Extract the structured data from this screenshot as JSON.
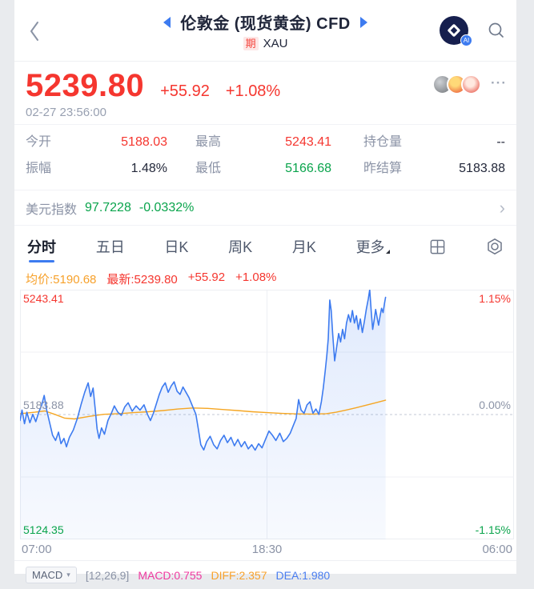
{
  "header": {
    "back_glyph": "‹",
    "title": "伦敦金 (现货黄金) CFD",
    "badge": "期",
    "symbol": "XAU"
  },
  "price": {
    "last": "5239.80",
    "change": "+55.92",
    "change_pct": "+1.08%",
    "time": "02-27 23:56:00",
    "ellipsis": "···"
  },
  "stats": {
    "items": [
      {
        "label": "今开",
        "value": "5188.03",
        "color": "red"
      },
      {
        "label": "最高",
        "value": "5243.41",
        "color": "red"
      },
      {
        "label": "持仓量",
        "value": "--",
        "color": "dark"
      },
      {
        "label": "振幅",
        "value": "1.48%",
        "color": "dark"
      },
      {
        "label": "最低",
        "value": "5166.68",
        "color": "green"
      },
      {
        "label": "昨结算",
        "value": "5183.88",
        "color": "dark"
      }
    ]
  },
  "usd": {
    "label": "美元指数",
    "value": "97.7228",
    "change": "-0.0332%",
    "chevron": "›"
  },
  "tabs": {
    "items": [
      "分时",
      "五日",
      "日K",
      "周K",
      "月K",
      "更多"
    ],
    "active": 0
  },
  "legend": {
    "avg": "均价:5190.68",
    "last": "最新:5239.80",
    "change": "+55.92",
    "pct": "+1.08%"
  },
  "chart_data": {
    "type": "line",
    "title": "分时走势 (intraday)",
    "x_labels": [
      "07:00",
      "18:30",
      "06:00"
    ],
    "y_left_labels": [
      "5243.41",
      "5183.88",
      "5124.35"
    ],
    "y_right_labels": [
      "1.15%",
      "0.00%",
      "-1.15%"
    ],
    "ylim": [
      5124.35,
      5243.41
    ],
    "baseline": 5183.88,
    "grid": true,
    "series": [
      {
        "name": "price",
        "color": "#3d7bf0",
        "points": [
          [
            0,
            5181
          ],
          [
            0.004,
            5186
          ],
          [
            0.009,
            5179.5
          ],
          [
            0.014,
            5185
          ],
          [
            0.02,
            5180
          ],
          [
            0.026,
            5184
          ],
          [
            0.032,
            5180.5
          ],
          [
            0.038,
            5185
          ],
          [
            0.044,
            5188.5
          ],
          [
            0.049,
            5193
          ],
          [
            0.054,
            5186
          ],
          [
            0.06,
            5180
          ],
          [
            0.066,
            5174
          ],
          [
            0.072,
            5171.5
          ],
          [
            0.078,
            5175.5
          ],
          [
            0.083,
            5170
          ],
          [
            0.089,
            5172.5
          ],
          [
            0.094,
            5168.5
          ],
          [
            0.1,
            5173
          ],
          [
            0.108,
            5176.5
          ],
          [
            0.116,
            5182
          ],
          [
            0.124,
            5189
          ],
          [
            0.131,
            5194.5
          ],
          [
            0.138,
            5199
          ],
          [
            0.143,
            5192.5
          ],
          [
            0.148,
            5196.5
          ],
          [
            0.152,
            5187
          ],
          [
            0.156,
            5177
          ],
          [
            0.16,
            5172.5
          ],
          [
            0.165,
            5177.5
          ],
          [
            0.171,
            5174.5
          ],
          [
            0.178,
            5181
          ],
          [
            0.185,
            5184.5
          ],
          [
            0.191,
            5188
          ],
          [
            0.198,
            5185
          ],
          [
            0.205,
            5183.5
          ],
          [
            0.212,
            5187.5
          ],
          [
            0.219,
            5189.5
          ],
          [
            0.227,
            5185.5
          ],
          [
            0.235,
            5188
          ],
          [
            0.243,
            5186
          ],
          [
            0.251,
            5188.5
          ],
          [
            0.258,
            5184
          ],
          [
            0.264,
            5181
          ],
          [
            0.27,
            5184.5
          ],
          [
            0.276,
            5189
          ],
          [
            0.282,
            5193.5
          ],
          [
            0.288,
            5197
          ],
          [
            0.294,
            5199
          ],
          [
            0.3,
            5194.5
          ],
          [
            0.306,
            5197.5
          ],
          [
            0.312,
            5199.5
          ],
          [
            0.318,
            5195
          ],
          [
            0.324,
            5193.5
          ],
          [
            0.33,
            5197
          ],
          [
            0.336,
            5194.5
          ],
          [
            0.342,
            5192
          ],
          [
            0.349,
            5188
          ],
          [
            0.356,
            5184
          ],
          [
            0.361,
            5177
          ],
          [
            0.366,
            5169.5
          ],
          [
            0.372,
            5167
          ],
          [
            0.378,
            5171
          ],
          [
            0.385,
            5173.5
          ],
          [
            0.392,
            5169.5
          ],
          [
            0.399,
            5167.5
          ],
          [
            0.406,
            5171.5
          ],
          [
            0.413,
            5174
          ],
          [
            0.42,
            5170.5
          ],
          [
            0.427,
            5173
          ],
          [
            0.434,
            5169
          ],
          [
            0.441,
            5172
          ],
          [
            0.448,
            5168.5
          ],
          [
            0.455,
            5171
          ],
          [
            0.462,
            5167.5
          ],
          [
            0.469,
            5169.5
          ],
          [
            0.476,
            5166.9
          ],
          [
            0.483,
            5170
          ],
          [
            0.49,
            5168
          ],
          [
            0.497,
            5172
          ],
          [
            0.504,
            5176
          ],
          [
            0.511,
            5174
          ],
          [
            0.518,
            5171.5
          ],
          [
            0.526,
            5175
          ],
          [
            0.533,
            5171
          ],
          [
            0.54,
            5172.5
          ],
          [
            0.547,
            5175
          ],
          [
            0.553,
            5178.5
          ],
          [
            0.559,
            5182
          ],
          [
            0.564,
            5191
          ],
          [
            0.569,
            5186
          ],
          [
            0.575,
            5184.5
          ],
          [
            0.581,
            5188.5
          ],
          [
            0.587,
            5190
          ],
          [
            0.593,
            5184.5
          ],
          [
            0.599,
            5186.5
          ],
          [
            0.605,
            5184
          ],
          [
            0.61,
            5190
          ],
          [
            0.614,
            5196.5
          ],
          [
            0.618,
            5205
          ],
          [
            0.621,
            5212
          ],
          [
            0.624,
            5220
          ],
          [
            0.627,
            5238.5
          ],
          [
            0.63,
            5233.5
          ],
          [
            0.633,
            5222
          ],
          [
            0.637,
            5209.5
          ],
          [
            0.641,
            5216
          ],
          [
            0.645,
            5222.5
          ],
          [
            0.649,
            5218.5
          ],
          [
            0.653,
            5224.5
          ],
          [
            0.657,
            5220
          ],
          [
            0.661,
            5227.5
          ],
          [
            0.665,
            5231.5
          ],
          [
            0.669,
            5228
          ],
          [
            0.673,
            5233.5
          ],
          [
            0.677,
            5227.5
          ],
          [
            0.681,
            5231
          ],
          [
            0.685,
            5224.5
          ],
          [
            0.689,
            5229.5
          ],
          [
            0.693,
            5223
          ],
          [
            0.697,
            5228
          ],
          [
            0.701,
            5234
          ],
          [
            0.705,
            5239
          ],
          [
            0.708,
            5243.4
          ],
          [
            0.711,
            5233
          ],
          [
            0.714,
            5224.5
          ],
          [
            0.717,
            5229
          ],
          [
            0.72,
            5234
          ],
          [
            0.723,
            5230
          ],
          [
            0.726,
            5226.5
          ],
          [
            0.729,
            5231
          ],
          [
            0.732,
            5234.5
          ],
          [
            0.735,
            5232.5
          ],
          [
            0.738,
            5237
          ],
          [
            0.74,
            5239.8
          ]
        ]
      },
      {
        "name": "average",
        "color": "#f5a623",
        "points": [
          [
            0,
            5184.3
          ],
          [
            0.03,
            5185
          ],
          [
            0.05,
            5185.6
          ],
          [
            0.07,
            5184
          ],
          [
            0.09,
            5182.2
          ],
          [
            0.11,
            5181.8
          ],
          [
            0.14,
            5183
          ],
          [
            0.17,
            5184
          ],
          [
            0.2,
            5184.3
          ],
          [
            0.23,
            5184.8
          ],
          [
            0.26,
            5185.2
          ],
          [
            0.29,
            5185.8
          ],
          [
            0.32,
            5186.5
          ],
          [
            0.35,
            5187
          ],
          [
            0.38,
            5186.8
          ],
          [
            0.41,
            5186.3
          ],
          [
            0.44,
            5185.8
          ],
          [
            0.47,
            5185.2
          ],
          [
            0.5,
            5184.8
          ],
          [
            0.53,
            5184.4
          ],
          [
            0.56,
            5184.2
          ],
          [
            0.59,
            5184.1
          ],
          [
            0.62,
            5184.3
          ],
          [
            0.64,
            5185
          ],
          [
            0.66,
            5186
          ],
          [
            0.68,
            5187.1
          ],
          [
            0.7,
            5188.3
          ],
          [
            0.72,
            5189.5
          ],
          [
            0.74,
            5190.7
          ]
        ]
      }
    ]
  },
  "macd": {
    "selector": "MACD",
    "caret": "▾",
    "params": "[12,26,9]",
    "macd": "MACD:0.755",
    "diff": "DIFF:2.357",
    "dea": "DEA:1.980"
  },
  "colors": {
    "red": "#f5362f",
    "green": "#0aa44c",
    "orange": "#f7a12b",
    "blue_accent": "#3d7bf0",
    "pink": "#ef3a9f",
    "dea_blue": "#4a7df0"
  }
}
